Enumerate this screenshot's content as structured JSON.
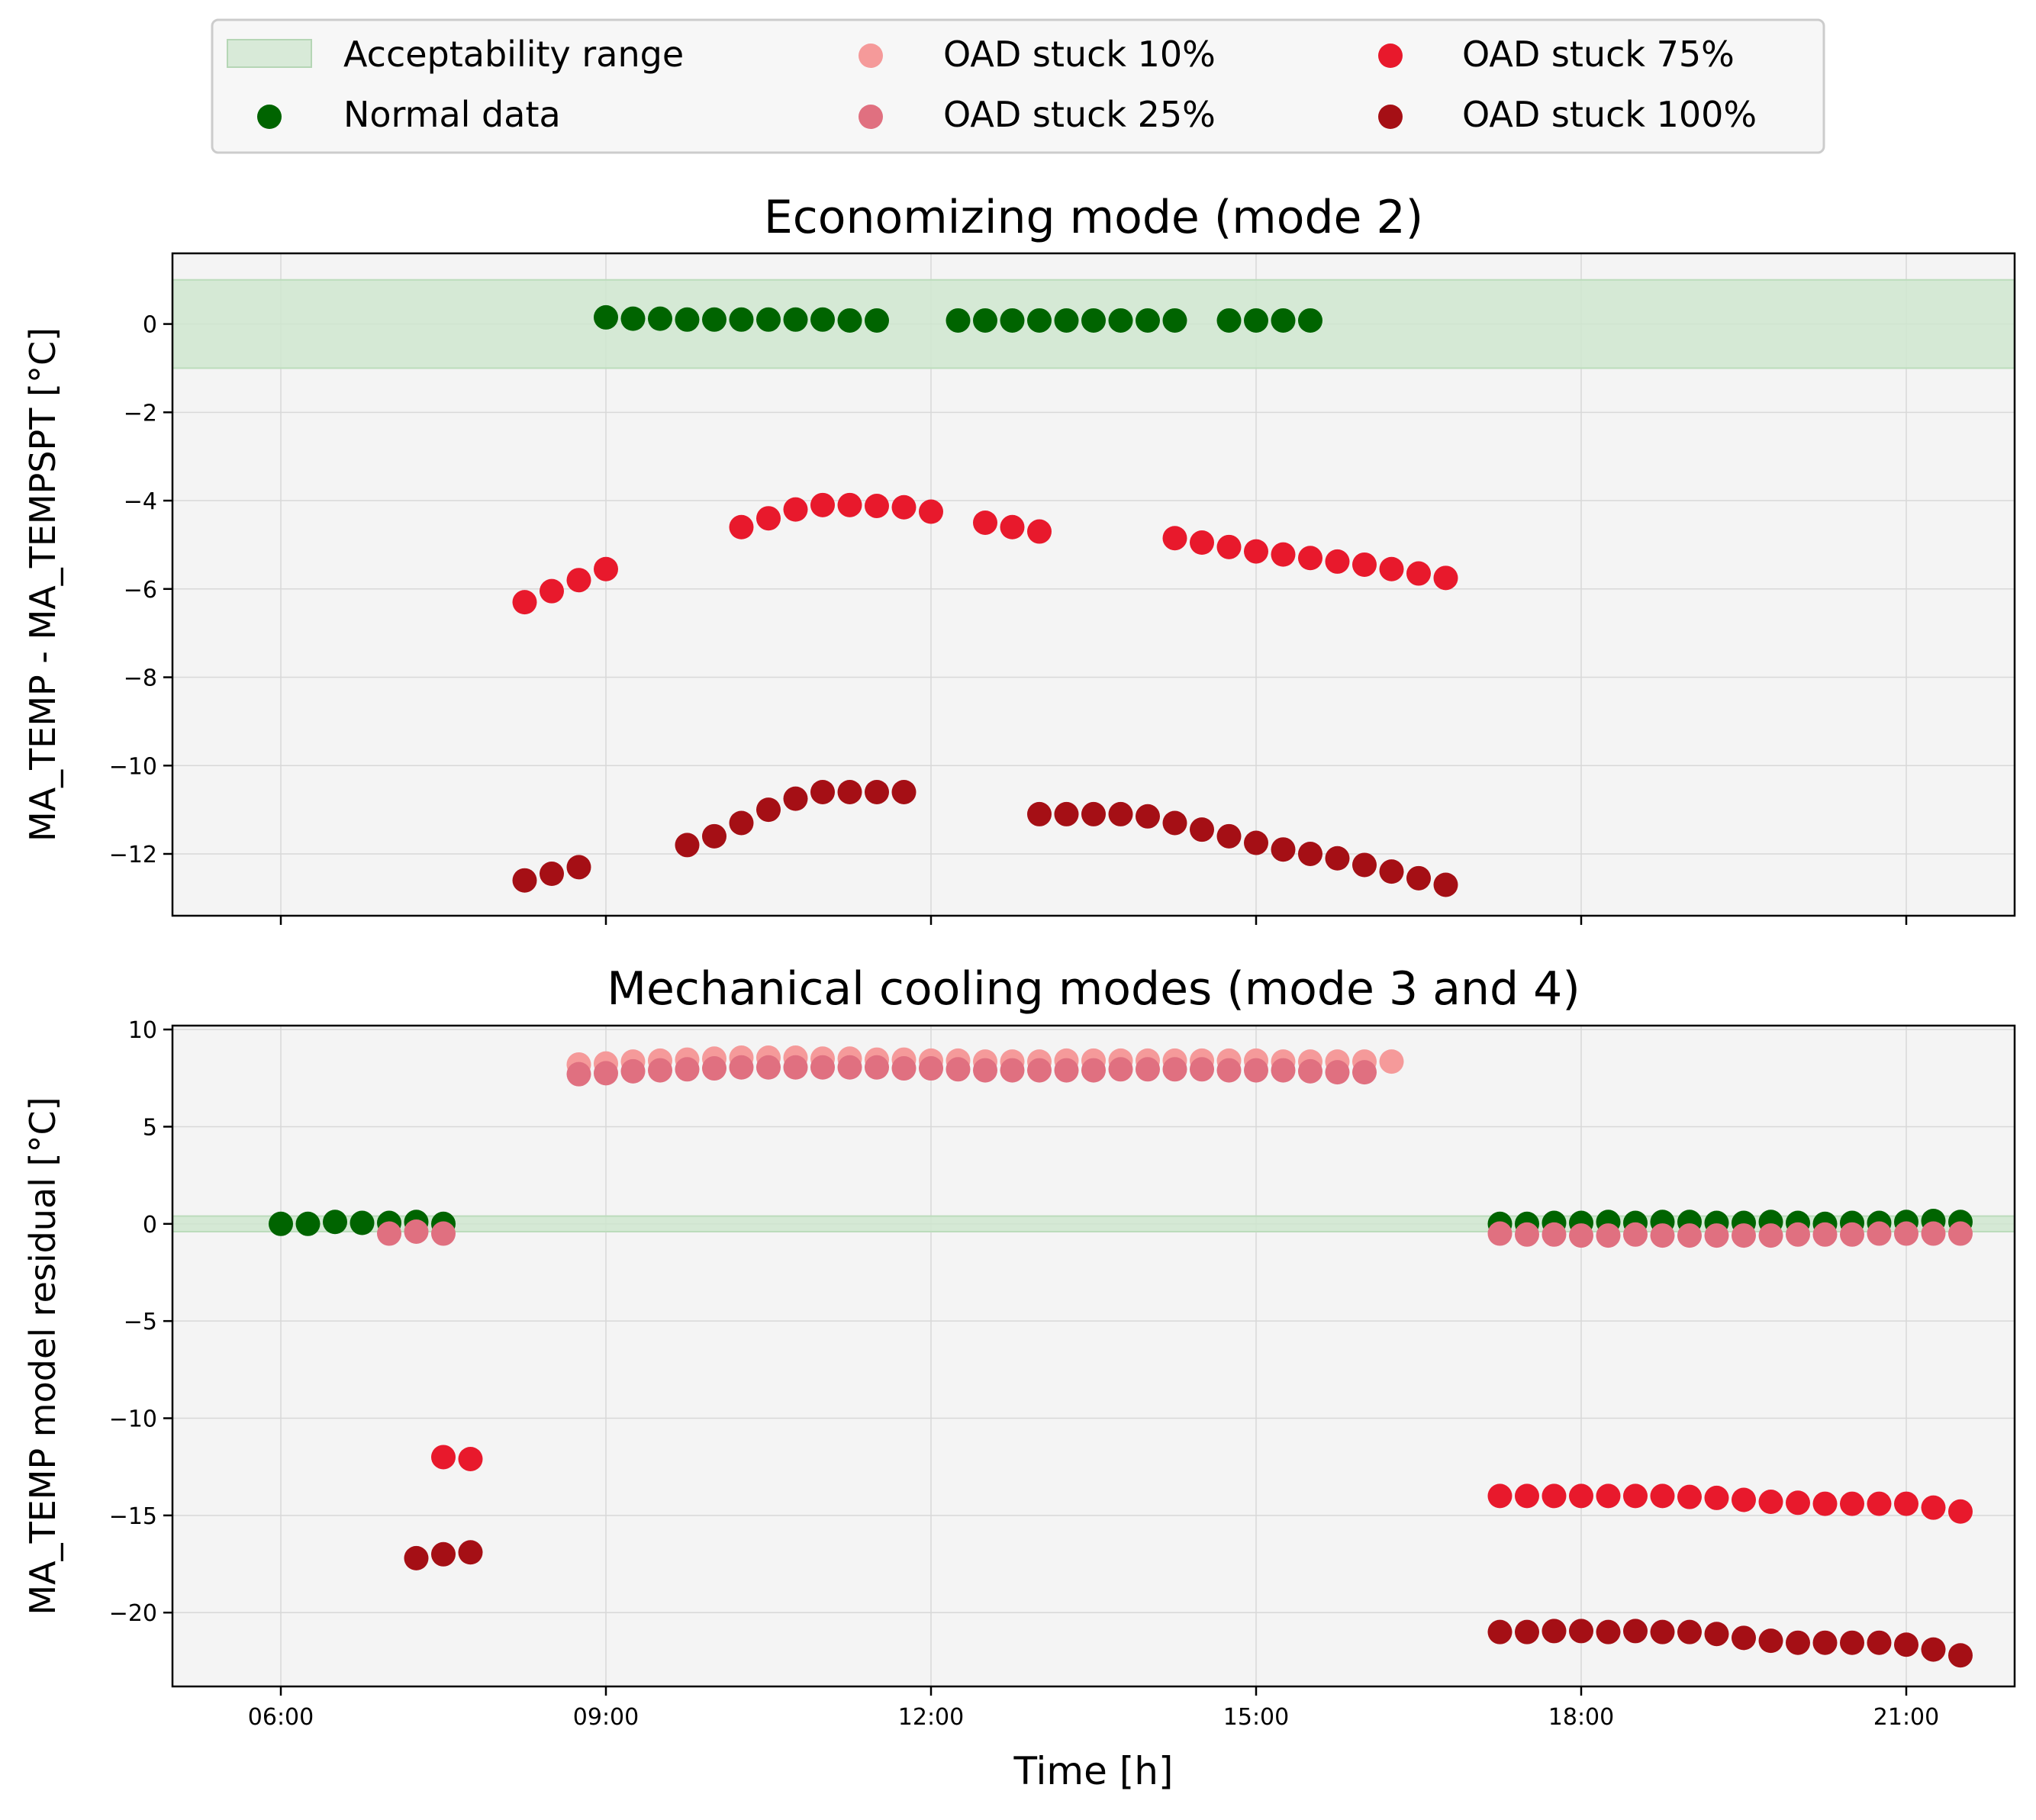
{
  "legend": {
    "acceptability": "Acceptability range",
    "normal": "Normal data",
    "stuck10": "OAD stuck 10%",
    "stuck25": "OAD stuck 25%",
    "stuck75": "OAD stuck 75%",
    "stuck100": "OAD stuck 100%",
    "placement": "top-center, 3 columns"
  },
  "colors": {
    "normal": "#006400",
    "stuck10": "#f59a9a",
    "stuck25": "#e07080",
    "stuck75": "#e8192c",
    "stuck100": "#a50f15",
    "band": "#cfe6cf",
    "axes_bg": "#f4f4f4"
  },
  "chart_data": [
    {
      "type": "scatter",
      "title": "Economizing mode (mode 2)",
      "ylabel": "MA_TEMP - MA_TEMPSPT [°C]",
      "xlabel": "",
      "xlim": [
        "05:00",
        "22:00"
      ],
      "ylim": [
        -13.4,
        1.6
      ],
      "xticks": [
        "06:00",
        "09:00",
        "12:00",
        "15:00",
        "18:00",
        "21:00"
      ],
      "yticks": [
        0,
        -2,
        -4,
        -6,
        -8,
        -10,
        -12
      ],
      "ytick_labels": [
        "0",
        "−2",
        "−4",
        "−6",
        "−8",
        "−10",
        "−12"
      ],
      "grid": true,
      "acceptability_range": [
        -1,
        1
      ],
      "series": [
        {
          "name": "Normal data",
          "key": "normal",
          "x": [
            "09:00",
            "09:15",
            "09:30",
            "09:45",
            "10:00",
            "10:15",
            "10:30",
            "10:45",
            "11:00",
            "11:15",
            "11:30",
            "12:15",
            "12:30",
            "12:45",
            "13:00",
            "13:15",
            "13:30",
            "13:45",
            "14:00",
            "14:15",
            "14:45",
            "15:00",
            "15:15",
            "15:30"
          ],
          "y": [
            0.15,
            0.12,
            0.12,
            0.1,
            0.1,
            0.1,
            0.1,
            0.1,
            0.1,
            0.08,
            0.08,
            0.08,
            0.08,
            0.08,
            0.08,
            0.08,
            0.08,
            0.08,
            0.08,
            0.08,
            0.08,
            0.08,
            0.08,
            0.08
          ]
        },
        {
          "name": "OAD stuck 75%",
          "key": "stuck75",
          "x": [
            "08:15",
            "08:30",
            "08:45",
            "09:00",
            "10:15",
            "10:30",
            "10:45",
            "11:00",
            "11:15",
            "11:30",
            "11:45",
            "12:00",
            "12:30",
            "12:45",
            "13:00",
            "14:15",
            "14:30",
            "14:45",
            "15:00",
            "15:15",
            "15:30",
            "15:45",
            "16:00",
            "16:15",
            "16:30",
            "16:45"
          ],
          "y": [
            -6.3,
            -6.05,
            -5.8,
            -5.55,
            -4.6,
            -4.4,
            -4.2,
            -4.1,
            -4.1,
            -4.12,
            -4.15,
            -4.25,
            -4.5,
            -4.6,
            -4.7,
            -4.85,
            -4.95,
            -5.05,
            -5.15,
            -5.22,
            -5.3,
            -5.38,
            -5.45,
            -5.55,
            -5.65,
            -5.75
          ]
        },
        {
          "name": "OAD stuck 100%",
          "key": "stuck100",
          "x": [
            "08:15",
            "08:30",
            "08:45",
            "09:45",
            "10:00",
            "10:15",
            "10:30",
            "10:45",
            "11:00",
            "11:15",
            "11:30",
            "11:45",
            "13:00",
            "13:15",
            "13:30",
            "13:45",
            "14:00",
            "14:15",
            "14:30",
            "14:45",
            "15:00",
            "15:15",
            "15:30",
            "15:45",
            "16:00",
            "16:15",
            "16:30",
            "16:45"
          ],
          "y": [
            -12.6,
            -12.45,
            -12.3,
            -11.8,
            -11.6,
            -11.3,
            -11.0,
            -10.75,
            -10.6,
            -10.6,
            -10.6,
            -10.6,
            -11.1,
            -11.1,
            -11.1,
            -11.1,
            -11.15,
            -11.3,
            -11.45,
            -11.6,
            -11.75,
            -11.9,
            -12.0,
            -12.1,
            -12.25,
            -12.4,
            -12.55,
            -12.7
          ]
        }
      ]
    },
    {
      "type": "scatter",
      "title": "Mechanical cooling modes (mode 3 and 4)",
      "ylabel": "MA_TEMP model residual [°C]",
      "xlabel": "Time [h]",
      "xlim": [
        "05:00",
        "22:00"
      ],
      "ylim": [
        -23.8,
        10.2
      ],
      "xticks": [
        "06:00",
        "09:00",
        "12:00",
        "15:00",
        "18:00",
        "21:00"
      ],
      "yticks": [
        10,
        5,
        0,
        -5,
        -10,
        -15,
        -20
      ],
      "ytick_labels": [
        "10",
        "5",
        "0",
        "−5",
        "−10",
        "−15",
        "−20"
      ],
      "grid": true,
      "acceptability_range": [
        -0.4,
        0.4
      ],
      "series": [
        {
          "name": "Normal data",
          "key": "normal",
          "x": [
            "06:00",
            "06:15",
            "06:30",
            "06:45",
            "07:00",
            "07:15",
            "07:30",
            "17:15",
            "17:30",
            "17:45",
            "18:00",
            "18:15",
            "18:30",
            "18:45",
            "19:00",
            "19:15",
            "19:30",
            "19:45",
            "20:00",
            "20:15",
            "20:30",
            "20:45",
            "21:00",
            "21:15",
            "21:30"
          ],
          "y": [
            0.0,
            0.0,
            0.1,
            0.05,
            0.05,
            0.1,
            0.0,
            0.0,
            0.0,
            0.05,
            0.05,
            0.1,
            0.05,
            0.1,
            0.1,
            0.05,
            0.05,
            0.1,
            0.05,
            0.0,
            0.05,
            0.05,
            0.1,
            0.15,
            0.1
          ]
        },
        {
          "name": "OAD stuck 10%",
          "key": "stuck10",
          "x": [
            "08:45",
            "09:00",
            "09:15",
            "09:30",
            "09:45",
            "10:00",
            "10:15",
            "10:30",
            "10:45",
            "11:00",
            "11:15",
            "11:30",
            "11:45",
            "12:00",
            "12:15",
            "12:30",
            "12:45",
            "13:00",
            "13:15",
            "13:30",
            "13:45",
            "14:00",
            "14:15",
            "14:30",
            "14:45",
            "15:00",
            "15:15",
            "15:30",
            "15:45",
            "16:00",
            "16:15"
          ],
          "y": [
            8.2,
            8.25,
            8.35,
            8.4,
            8.45,
            8.5,
            8.55,
            8.55,
            8.55,
            8.5,
            8.5,
            8.45,
            8.45,
            8.4,
            8.4,
            8.35,
            8.35,
            8.35,
            8.4,
            8.4,
            8.4,
            8.4,
            8.4,
            8.4,
            8.4,
            8.4,
            8.35,
            8.35,
            8.35,
            8.35,
            8.35
          ]
        },
        {
          "name": "OAD stuck 25%",
          "key": "stuck25",
          "x": [
            "07:00",
            "07:15",
            "07:30",
            "08:45",
            "09:00",
            "09:15",
            "09:30",
            "09:45",
            "10:00",
            "10:15",
            "10:30",
            "10:45",
            "11:00",
            "11:15",
            "11:30",
            "11:45",
            "12:00",
            "12:15",
            "12:30",
            "12:45",
            "13:00",
            "13:15",
            "13:30",
            "13:45",
            "14:00",
            "14:15",
            "14:30",
            "14:45",
            "15:00",
            "15:15",
            "15:30",
            "15:45",
            "16:00",
            "17:15",
            "17:30",
            "17:45",
            "18:00",
            "18:15",
            "18:30",
            "18:45",
            "19:00",
            "19:15",
            "19:30",
            "19:45",
            "20:00",
            "20:15",
            "20:30",
            "20:45",
            "21:00",
            "21:15",
            "21:30"
          ],
          "y": [
            -0.5,
            -0.4,
            -0.5,
            7.7,
            7.75,
            7.85,
            7.9,
            7.95,
            8.0,
            8.05,
            8.05,
            8.05,
            8.05,
            8.05,
            8.05,
            8.0,
            8.0,
            7.95,
            7.9,
            7.9,
            7.9,
            7.9,
            7.9,
            7.95,
            7.95,
            7.95,
            7.95,
            7.9,
            7.9,
            7.9,
            7.85,
            7.8,
            7.8,
            -0.5,
            -0.55,
            -0.55,
            -0.6,
            -0.6,
            -0.55,
            -0.6,
            -0.6,
            -0.6,
            -0.6,
            -0.6,
            -0.55,
            -0.55,
            -0.55,
            -0.5,
            -0.5,
            -0.5,
            -0.5
          ]
        },
        {
          "name": "OAD stuck 75%",
          "key": "stuck75",
          "x": [
            "07:30",
            "07:45",
            "17:15",
            "17:30",
            "17:45",
            "18:00",
            "18:15",
            "18:30",
            "18:45",
            "19:00",
            "19:15",
            "19:30",
            "19:45",
            "20:00",
            "20:15",
            "20:30",
            "20:45",
            "21:00",
            "21:15",
            "21:30"
          ],
          "y": [
            -12.0,
            -12.1,
            -14.0,
            -14.0,
            -14.0,
            -14.0,
            -14.0,
            -14.0,
            -14.0,
            -14.05,
            -14.1,
            -14.2,
            -14.3,
            -14.35,
            -14.4,
            -14.4,
            -14.4,
            -14.4,
            -14.6,
            -14.8
          ]
        },
        {
          "name": "OAD stuck 100%",
          "key": "stuck100",
          "x": [
            "07:15",
            "07:30",
            "07:45",
            "17:15",
            "17:30",
            "17:45",
            "18:00",
            "18:15",
            "18:30",
            "18:45",
            "19:00",
            "19:15",
            "19:30",
            "19:45",
            "20:00",
            "20:15",
            "20:30",
            "20:45",
            "21:00",
            "21:15",
            "21:30"
          ],
          "y": [
            -17.2,
            -17.0,
            -16.9,
            -21.0,
            -21.0,
            -20.95,
            -20.95,
            -21.0,
            -20.95,
            -21.0,
            -21.0,
            -21.1,
            -21.3,
            -21.45,
            -21.55,
            -21.55,
            -21.55,
            -21.55,
            -21.65,
            -21.9,
            -22.2
          ]
        }
      ]
    }
  ]
}
